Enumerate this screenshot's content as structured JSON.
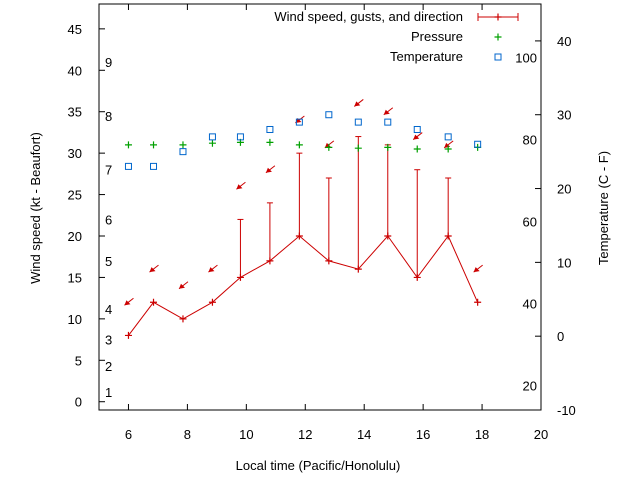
{
  "chart_data": {
    "type": "line",
    "xlabel": "Local time (Pacific/Honolulu)",
    "ylabel_left": "Wind speed (kt - Beaufort)",
    "ylabel_right": "Temperature (C - F)",
    "xlim": [
      5,
      20
    ],
    "xticks": [
      6,
      8,
      10,
      12,
      14,
      16,
      18,
      20
    ],
    "ylim_left": [
      -1,
      48
    ],
    "yticks_left": [
      0,
      5,
      10,
      15,
      20,
      25,
      30,
      35,
      40,
      45
    ],
    "ylim_right_c": [
      -10,
      45
    ],
    "yticks_right_c": [
      -10,
      0,
      10,
      20,
      30,
      40
    ],
    "fahrenheit_ticks": [
      20,
      40,
      60,
      80,
      100
    ],
    "beaufort_ticks": [
      {
        "label": "1",
        "kt": 1.2
      },
      {
        "label": "2",
        "kt": 4.3
      },
      {
        "label": "3",
        "kt": 7.5
      },
      {
        "label": "4",
        "kt": 11.2
      },
      {
        "label": "5",
        "kt": 17
      },
      {
        "label": "6",
        "kt": 22
      },
      {
        "label": "7",
        "kt": 28
      },
      {
        "label": "8",
        "kt": 34.5
      },
      {
        "label": "9",
        "kt": 41
      }
    ],
    "legend": {
      "placement": "top-right",
      "entries": [
        {
          "label": "Wind speed, gusts, and direction",
          "color": "#cc0000",
          "marker": "errorbar"
        },
        {
          "label": "Pressure",
          "color": "#00a000",
          "marker": "plus"
        },
        {
          "label": "Temperature",
          "color": "#0066cc",
          "marker": "open-square"
        }
      ]
    },
    "series": [
      {
        "name": "Wind speed",
        "color": "#cc0000",
        "x": [
          6,
          6.85,
          7.85,
          8.85,
          9.8,
          10.8,
          11.8,
          12.8,
          13.8,
          14.8,
          15.8,
          16.85,
          17.85
        ],
        "values": [
          8,
          12,
          10,
          12,
          15,
          17,
          20,
          17,
          16,
          20,
          15,
          20,
          12
        ],
        "gusts": [
          8,
          12,
          10,
          12,
          22,
          24,
          30,
          27,
          32,
          31,
          28,
          27,
          12
        ],
        "direction_arrows_kt": [
          12,
          16,
          14,
          16,
          26,
          28,
          34,
          31,
          36,
          35,
          32,
          31,
          16
        ]
      },
      {
        "name": "Pressure",
        "color": "#00a000",
        "x": [
          6,
          6.85,
          7.85,
          8.85,
          9.8,
          10.8,
          11.8,
          12.8,
          13.8,
          14.8,
          15.8,
          16.85,
          17.85
        ],
        "values": [
          31,
          31,
          31,
          31.2,
          31.3,
          31.3,
          31,
          30.7,
          30.6,
          30.7,
          30.5,
          30.5,
          30.7
        ]
      },
      {
        "name": "Temperature",
        "color": "#0066cc",
        "x": [
          6,
          6.85,
          7.85,
          8.85,
          9.8,
          10.8,
          11.8,
          12.8,
          13.8,
          14.8,
          15.8,
          16.85,
          17.85
        ],
        "values_c": [
          23,
          23,
          25,
          27,
          27,
          28,
          29,
          30,
          29,
          29,
          28,
          27,
          26
        ]
      }
    ]
  }
}
